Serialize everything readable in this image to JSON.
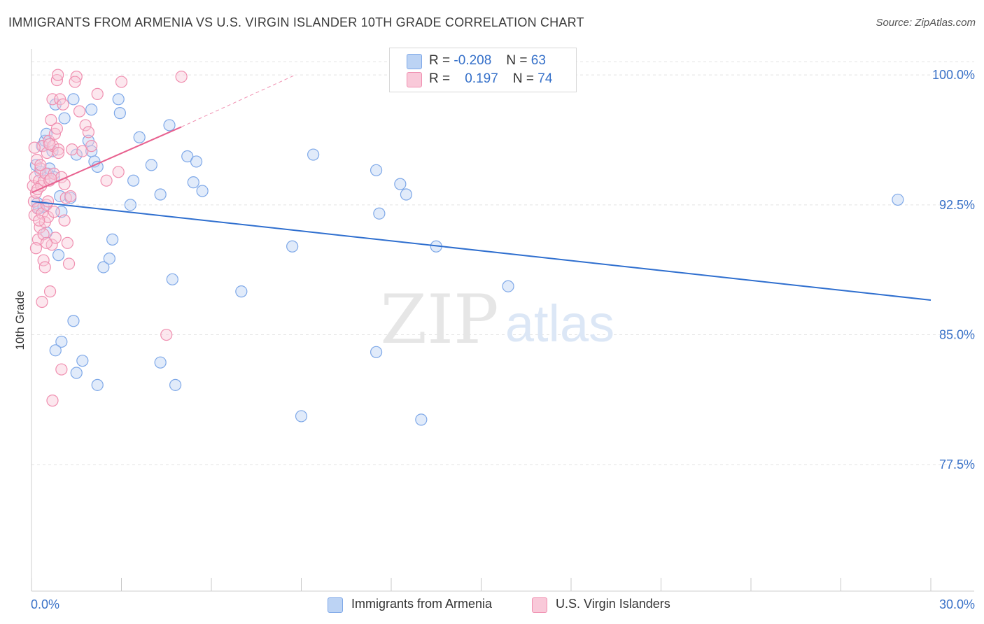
{
  "header": {
    "title": "IMMIGRANTS FROM ARMENIA VS U.S. VIRGIN ISLANDER 10TH GRADE CORRELATION CHART",
    "source": "Source: ZipAtlas.com"
  },
  "watermark": {
    "zip": "ZIP",
    "atlas": "atlas"
  },
  "colors": {
    "blue": "#7ea8e8",
    "blue_fill": "#bcd3f4",
    "blue_line": "#2f6fcf",
    "pink": "#f08fb0",
    "pink_fill": "#f9c9d9",
    "pink_line": "#e8618f",
    "axis_label": "#3a72c8",
    "grid": "#e3e3e3"
  },
  "legend": {
    "series": [
      {
        "r_label": "R =",
        "r_value": "-0.208",
        "n_label": "N =",
        "n_value": "63"
      },
      {
        "r_label": "R =",
        "r_value": "0.197",
        "n_label": "N =",
        "n_value": "74"
      }
    ]
  },
  "bottom_legend": {
    "items": [
      {
        "label": "Immigrants from Armenia"
      },
      {
        "label": "U.S. Virgin Islanders"
      }
    ]
  },
  "chart_data": {
    "type": "scatter",
    "title": "IMMIGRANTS FROM ARMENIA VS U.S. VIRGIN ISLANDER 10TH GRADE CORRELATION CHART",
    "xlabel": "",
    "ylabel": "10th Grade",
    "xlim": [
      0,
      30
    ],
    "ylim": [
      70.2,
      101.5
    ],
    "x_tick_labels": [
      "0.0%",
      "30.0%"
    ],
    "y_ticks": [
      77.5,
      85.0,
      92.5,
      100.0
    ],
    "y_tick_labels": [
      "77.5%",
      "85.0%",
      "92.5%",
      "100.0%"
    ],
    "grid": true,
    "series": [
      {
        "name": "Immigrants from Armenia",
        "color": "blue",
        "r": -0.208,
        "n": 63,
        "trend": {
          "x": [
            0.0,
            30.0
          ],
          "y": [
            92.7,
            87.0
          ],
          "dashed_extension": false
        },
        "points": [
          [
            0.15,
            94.8
          ],
          [
            0.2,
            92.6
          ],
          [
            0.25,
            92.3
          ],
          [
            0.3,
            94.4
          ],
          [
            0.35,
            95.9
          ],
          [
            0.4,
            92.4
          ],
          [
            0.45,
            96.2
          ],
          [
            0.5,
            96.6
          ],
          [
            0.55,
            94.3
          ],
          [
            0.6,
            94.6
          ],
          [
            0.7,
            95.6
          ],
          [
            0.75,
            94.1
          ],
          [
            0.8,
            98.3
          ],
          [
            0.9,
            89.6
          ],
          [
            0.95,
            93.0
          ],
          [
            1.0,
            92.1
          ],
          [
            1.1,
            97.5
          ],
          [
            1.4,
            98.6
          ],
          [
            1.5,
            95.4
          ],
          [
            1.9,
            96.2
          ],
          [
            2.0,
            95.6
          ],
          [
            2.0,
            98.0
          ],
          [
            2.1,
            95.0
          ],
          [
            2.2,
            94.7
          ],
          [
            2.4,
            88.9
          ],
          [
            2.6,
            89.4
          ],
          [
            2.7,
            90.5
          ],
          [
            2.9,
            98.6
          ],
          [
            2.95,
            97.8
          ],
          [
            3.4,
            93.9
          ],
          [
            3.3,
            92.5
          ],
          [
            3.6,
            96.4
          ],
          [
            4.0,
            94.8
          ],
          [
            4.3,
            93.1
          ],
          [
            4.6,
            97.1
          ],
          [
            4.7,
            88.2
          ],
          [
            5.2,
            95.3
          ],
          [
            5.4,
            93.8
          ],
          [
            5.5,
            95.0
          ],
          [
            5.7,
            93.3
          ],
          [
            1.4,
            85.8
          ],
          [
            1.0,
            84.6
          ],
          [
            0.8,
            84.1
          ],
          [
            1.7,
            83.5
          ],
          [
            1.5,
            82.8
          ],
          [
            2.2,
            82.1
          ],
          [
            4.3,
            83.4
          ],
          [
            4.8,
            82.1
          ],
          [
            7.0,
            87.5
          ],
          [
            8.7,
            90.1
          ],
          [
            9.4,
            95.4
          ],
          [
            9.0,
            80.3
          ],
          [
            11.5,
            94.5
          ],
          [
            11.6,
            92.0
          ],
          [
            11.5,
            84.0
          ],
          [
            12.3,
            93.7
          ],
          [
            12.5,
            93.1
          ],
          [
            13.0,
            80.1
          ],
          [
            13.5,
            90.1
          ],
          [
            15.9,
            87.8
          ],
          [
            28.9,
            92.8
          ],
          [
            0.5,
            90.9
          ],
          [
            1.3,
            92.9
          ]
        ]
      },
      {
        "name": "U.S. Virgin Islanders",
        "color": "pink",
        "r": 0.197,
        "n": 74,
        "trend": {
          "x": [
            0.0,
            5.0
          ],
          "y": [
            93.2,
            97.0
          ],
          "dashed_x": [
            5.0,
            8.8
          ],
          "dashed_y": [
            97.0,
            100.0
          ]
        },
        "points": [
          [
            0.05,
            93.6
          ],
          [
            0.08,
            92.7
          ],
          [
            0.1,
            91.9
          ],
          [
            0.12,
            94.1
          ],
          [
            0.15,
            93.2
          ],
          [
            0.18,
            95.1
          ],
          [
            0.2,
            92.3
          ],
          [
            0.22,
            90.5
          ],
          [
            0.25,
            93.9
          ],
          [
            0.28,
            91.2
          ],
          [
            0.3,
            94.6
          ],
          [
            0.32,
            93.6
          ],
          [
            0.35,
            92.0
          ],
          [
            0.38,
            95.9
          ],
          [
            0.4,
            89.3
          ],
          [
            0.42,
            93.9
          ],
          [
            0.45,
            91.5
          ],
          [
            0.48,
            94.3
          ],
          [
            0.5,
            92.5
          ],
          [
            0.52,
            95.5
          ],
          [
            0.55,
            91.8
          ],
          [
            0.58,
            96.2
          ],
          [
            0.6,
            93.9
          ],
          [
            0.62,
            87.5
          ],
          [
            0.65,
            97.4
          ],
          [
            0.68,
            90.2
          ],
          [
            0.7,
            98.6
          ],
          [
            0.72,
            95.9
          ],
          [
            0.75,
            94.3
          ],
          [
            0.78,
            96.6
          ],
          [
            0.8,
            90.6
          ],
          [
            0.85,
            99.7
          ],
          [
            0.88,
            100.0
          ],
          [
            0.9,
            95.7
          ],
          [
            0.95,
            98.6
          ],
          [
            1.0,
            94.1
          ],
          [
            1.05,
            98.3
          ],
          [
            1.1,
            93.7
          ],
          [
            1.15,
            92.9
          ],
          [
            1.2,
            90.3
          ],
          [
            1.25,
            89.1
          ],
          [
            1.3,
            93.0
          ],
          [
            1.35,
            95.7
          ],
          [
            1.5,
            99.9
          ],
          [
            1.6,
            97.9
          ],
          [
            1.7,
            95.6
          ],
          [
            1.8,
            97.1
          ],
          [
            1.9,
            96.7
          ],
          [
            2.0,
            95.9
          ],
          [
            2.2,
            98.9
          ],
          [
            2.5,
            93.9
          ],
          [
            2.9,
            94.4
          ],
          [
            3.0,
            99.6
          ],
          [
            4.5,
            85.0
          ],
          [
            5.0,
            99.9
          ],
          [
            0.7,
            81.2
          ],
          [
            1.0,
            83.0
          ],
          [
            0.35,
            86.9
          ],
          [
            0.4,
            90.8
          ],
          [
            0.55,
            92.7
          ],
          [
            0.6,
            96.0
          ],
          [
            0.9,
            95.5
          ],
          [
            0.3,
            94.8
          ],
          [
            0.25,
            91.6
          ],
          [
            0.45,
            88.9
          ],
          [
            0.15,
            90.0
          ],
          [
            0.1,
            95.8
          ],
          [
            0.65,
            94.0
          ],
          [
            1.1,
            91.6
          ],
          [
            0.5,
            90.3
          ],
          [
            0.75,
            92.1
          ],
          [
            1.45,
            99.6
          ],
          [
            0.2,
            93.4
          ],
          [
            0.85,
            96.9
          ]
        ]
      }
    ]
  }
}
